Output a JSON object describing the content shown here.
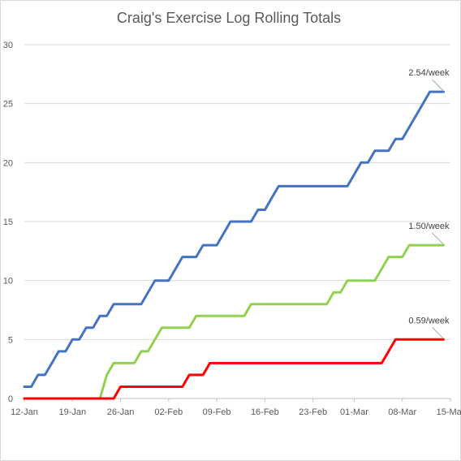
{
  "chart_data": {
    "type": "line",
    "title": "Craig's Exercise Log Rolling Totals",
    "xlabel": "",
    "ylabel": "",
    "x_start": "12-Jan",
    "x_end": "15-Mar",
    "x_ticks": [
      "12-Jan",
      "19-Jan",
      "26-Jan",
      "02-Feb",
      "09-Feb",
      "16-Feb",
      "23-Feb",
      "01-Mar",
      "08-Mar",
      "15-Mar"
    ],
    "ylim": [
      0,
      30
    ],
    "y_ticks": [
      0,
      5,
      10,
      15,
      20,
      25,
      30
    ],
    "grid": true,
    "legend": "none",
    "series": [
      {
        "color": "#4472c4",
        "annotation": "2.54/week",
        "points": [
          [
            "12-Jan",
            1
          ],
          [
            "13-Jan",
            1
          ],
          [
            "14-Jan",
            2
          ],
          [
            "15-Jan",
            2
          ],
          [
            "16-Jan",
            3
          ],
          [
            "17-Jan",
            4
          ],
          [
            "18-Jan",
            4
          ],
          [
            "19-Jan",
            5
          ],
          [
            "20-Jan",
            5
          ],
          [
            "21-Jan",
            6
          ],
          [
            "22-Jan",
            6
          ],
          [
            "23-Jan",
            7
          ],
          [
            "24-Jan",
            7
          ],
          [
            "25-Jan",
            8
          ],
          [
            "28-Jan",
            8
          ],
          [
            "29-Jan",
            8
          ],
          [
            "30-Jan",
            9
          ],
          [
            "31-Jan",
            10
          ],
          [
            "01-Feb",
            10
          ],
          [
            "02-Feb",
            10
          ],
          [
            "03-Feb",
            11
          ],
          [
            "04-Feb",
            12
          ],
          [
            "06-Feb",
            12
          ],
          [
            "07-Feb",
            13
          ],
          [
            "08-Feb",
            13
          ],
          [
            "09-Feb",
            13
          ],
          [
            "10-Feb",
            14
          ],
          [
            "11-Feb",
            15
          ],
          [
            "14-Feb",
            15
          ],
          [
            "15-Feb",
            16
          ],
          [
            "16-Feb",
            16
          ],
          [
            "17-Feb",
            17
          ],
          [
            "18-Feb",
            18
          ],
          [
            "28-Feb",
            18
          ],
          [
            "01-Mar",
            19
          ],
          [
            "02-Mar",
            20
          ],
          [
            "03-Mar",
            20
          ],
          [
            "04-Mar",
            21
          ],
          [
            "06-Mar",
            21
          ],
          [
            "07-Mar",
            22
          ],
          [
            "08-Mar",
            22
          ],
          [
            "09-Mar",
            23
          ],
          [
            "10-Mar",
            24
          ],
          [
            "11-Mar",
            25
          ],
          [
            "12-Mar",
            26
          ],
          [
            "14-Mar",
            26
          ]
        ]
      },
      {
        "color": "#92d050",
        "annotation": "1.50/week",
        "points": [
          [
            "12-Jan",
            0
          ],
          [
            "23-Jan",
            0
          ],
          [
            "24-Jan",
            2
          ],
          [
            "25-Jan",
            3
          ],
          [
            "28-Jan",
            3
          ],
          [
            "29-Jan",
            4
          ],
          [
            "30-Jan",
            4
          ],
          [
            "31-Jan",
            5
          ],
          [
            "01-Feb",
            6
          ],
          [
            "05-Feb",
            6
          ],
          [
            "06-Feb",
            7
          ],
          [
            "13-Feb",
            7
          ],
          [
            "14-Feb",
            8
          ],
          [
            "25-Feb",
            8
          ],
          [
            "26-Feb",
            9
          ],
          [
            "27-Feb",
            9
          ],
          [
            "28-Feb",
            10
          ],
          [
            "04-Mar",
            10
          ],
          [
            "05-Mar",
            11
          ],
          [
            "06-Mar",
            12
          ],
          [
            "08-Mar",
            12
          ],
          [
            "09-Mar",
            13
          ],
          [
            "14-Mar",
            13
          ]
        ]
      },
      {
        "color": "#ff0000",
        "annotation": "0.59/week",
        "points": [
          [
            "12-Jan",
            0
          ],
          [
            "25-Jan",
            0
          ],
          [
            "26-Jan",
            1
          ],
          [
            "04-Feb",
            1
          ],
          [
            "05-Feb",
            2
          ],
          [
            "07-Feb",
            2
          ],
          [
            "08-Feb",
            3
          ],
          [
            "05-Mar",
            3
          ],
          [
            "06-Mar",
            4
          ],
          [
            "07-Mar",
            5
          ],
          [
            "14-Mar",
            5
          ]
        ]
      }
    ]
  }
}
